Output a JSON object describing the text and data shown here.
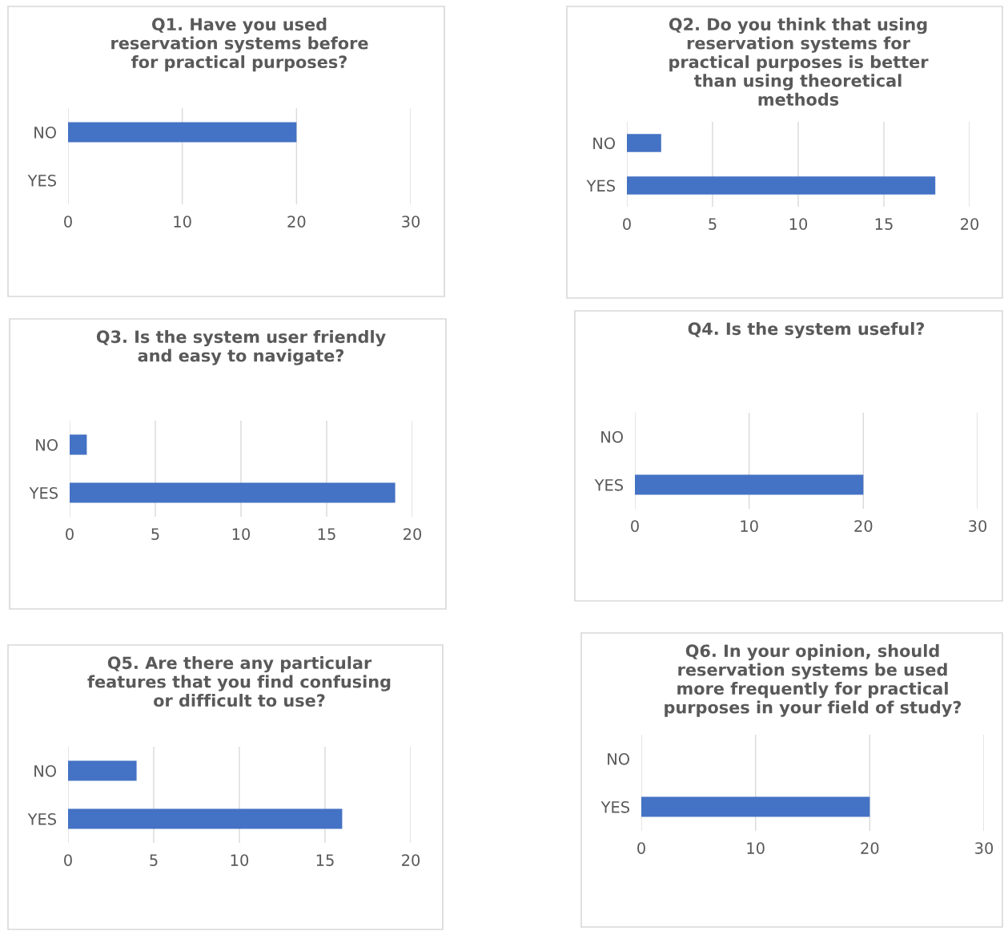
{
  "chart_data": [
    {
      "type": "bar",
      "orientation": "horizontal",
      "title": "Q1. Have you used reservation systems before for practical purposes?",
      "categories": [
        "NO",
        "YES"
      ],
      "values": [
        20,
        0
      ],
      "color": "#4472c4",
      "xlim": [
        0,
        30
      ],
      "xticks": [
        0,
        10,
        20,
        30
      ],
      "grid": "x",
      "legend": false
    },
    {
      "type": "bar",
      "orientation": "horizontal",
      "title": "Q2. Do you think that using reservation systems for practical purposes is better than using theoretical methods",
      "categories": [
        "NO",
        "YES"
      ],
      "values": [
        2,
        18
      ],
      "color": "#4472c4",
      "xlim": [
        0,
        20
      ],
      "xticks": [
        0,
        5,
        10,
        15,
        20
      ],
      "grid": "x",
      "legend": false
    },
    {
      "type": "bar",
      "orientation": "horizontal",
      "title": "Q3. Is the system user friendly and easy to navigate?",
      "categories": [
        "NO",
        "YES"
      ],
      "values": [
        1,
        19
      ],
      "color": "#4472c4",
      "xlim": [
        0,
        20
      ],
      "xticks": [
        0,
        5,
        10,
        15,
        20
      ],
      "grid": "x",
      "legend": false
    },
    {
      "type": "bar",
      "orientation": "horizontal",
      "title": "Q4. Is the system useful?",
      "categories": [
        "NO",
        "YES"
      ],
      "values": [
        0,
        20
      ],
      "color": "#4472c4",
      "xlim": [
        0,
        30
      ],
      "xticks": [
        0,
        10,
        20,
        30
      ],
      "grid": "x",
      "legend": false
    },
    {
      "type": "bar",
      "orientation": "horizontal",
      "title": "Q5. Are there any particular features that you find confusing or difficult to use?",
      "categories": [
        "NO",
        "YES"
      ],
      "values": [
        4,
        16
      ],
      "color": "#4472c4",
      "xlim": [
        0,
        20
      ],
      "xticks": [
        0,
        5,
        10,
        15,
        20
      ],
      "grid": "x",
      "legend": false
    },
    {
      "type": "bar",
      "orientation": "horizontal",
      "title": "Q6. In your opinion, should reservation systems be used more frequently for practical purposes in your field of study?",
      "categories": [
        "NO",
        "YES"
      ],
      "values": [
        0,
        20
      ],
      "color": "#4472c4",
      "xlim": [
        0,
        30
      ],
      "xticks": [
        0,
        10,
        20,
        30
      ],
      "grid": "x",
      "legend": false
    }
  ]
}
